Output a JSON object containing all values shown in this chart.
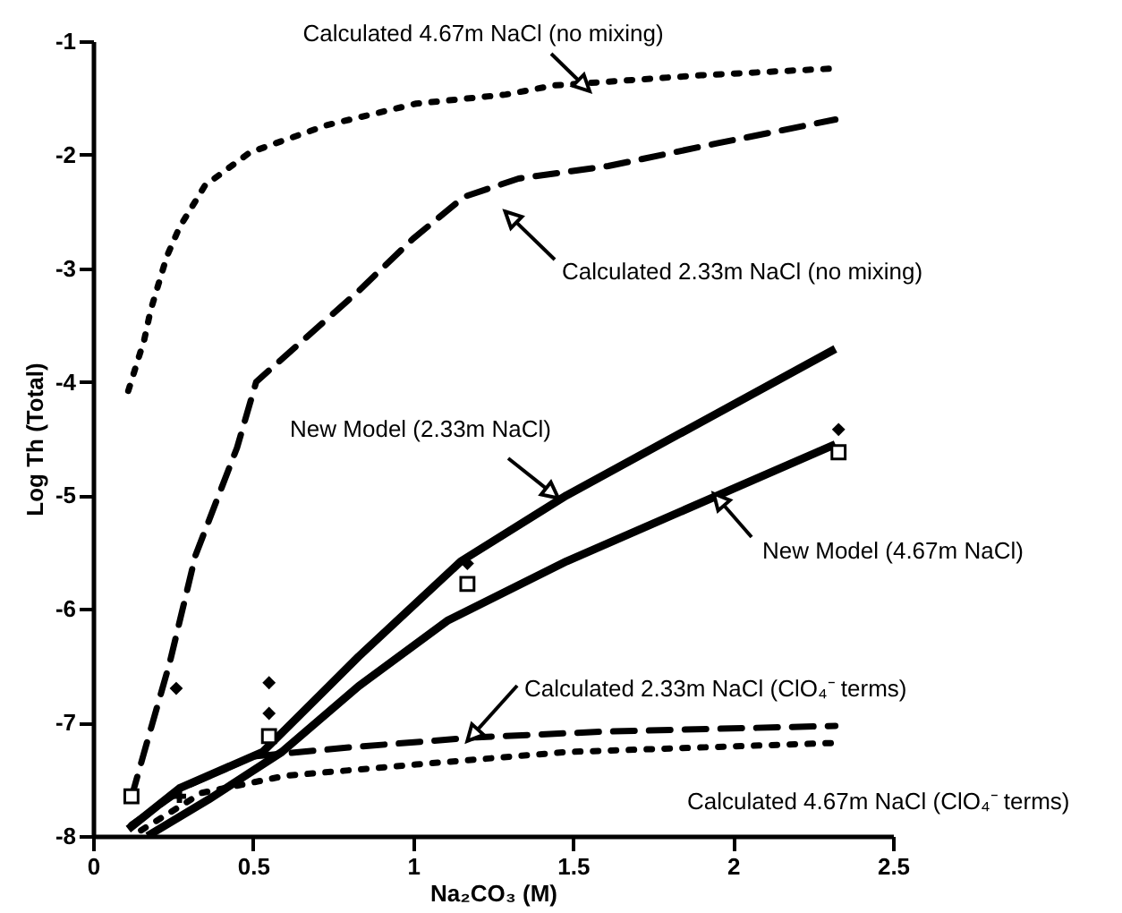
{
  "chart_data": {
    "type": "line",
    "xlabel": "Na₂CO₃ (M)",
    "ylabel": "Log Th (Total)",
    "xlim": [
      0,
      2.5
    ],
    "xticks": [
      0,
      0.5,
      1,
      1.5,
      2,
      2.5
    ],
    "ylim": [
      -8,
      -1
    ],
    "yticks": [
      -8,
      -7,
      -6,
      -5,
      -4,
      -3,
      -2,
      -1
    ],
    "series": [
      {
        "color": "#000000",
        "line_style": "dotted",
        "x": [
          0.11,
          0.16,
          0.18,
          0.23,
          0.27,
          0.35,
          0.49,
          0.73,
          1.01,
          1.29,
          1.44,
          1.9,
          2.32
        ],
        "values": [
          -4.08,
          -3.63,
          -3.37,
          -2.9,
          -2.64,
          -2.27,
          -1.98,
          -1.74,
          -1.55,
          -1.47,
          -1.39,
          -1.3,
          -1.24
        ]
      },
      {
        "color": "#000000",
        "line_style": "dashed",
        "x": [
          0.12,
          0.16,
          0.24,
          0.32,
          0.45,
          0.51,
          0.83,
          1.0,
          1.16,
          1.33,
          1.61,
          1.95,
          2.32
        ],
        "values": [
          -7.66,
          -7.26,
          -6.47,
          -5.53,
          -4.58,
          -4.0,
          -3.2,
          -2.74,
          -2.37,
          -2.21,
          -2.1,
          -1.9,
          -1.69
        ]
      },
      {
        "color": "#000000",
        "line_style": "solid",
        "x": [
          0.11,
          0.27,
          0.53,
          0.83,
          1.15,
          1.48,
          2.32
        ],
        "values": [
          -7.94,
          -7.58,
          -7.26,
          -6.42,
          -5.58,
          -5.0,
          -3.71
        ]
      },
      {
        "color": "#000000",
        "line_style": "solid",
        "x": [
          0.17,
          0.36,
          0.59,
          0.83,
          1.11,
          1.48,
          2.32
        ],
        "values": [
          -8.0,
          -7.68,
          -7.26,
          -6.68,
          -6.1,
          -5.58,
          -4.55
        ]
      },
      {
        "color": "#000000",
        "line_style": "dashed",
        "x": [
          0.12,
          0.3,
          0.5,
          0.8,
          1.2,
          1.6,
          2.32
        ],
        "values": [
          -7.9,
          -7.55,
          -7.3,
          -7.22,
          -7.13,
          -7.08,
          -7.03
        ]
      },
      {
        "color": "#000000",
        "line_style": "dotted",
        "x": [
          0.15,
          0.34,
          0.6,
          1.01,
          1.48,
          2.32
        ],
        "values": [
          -7.95,
          -7.62,
          -7.47,
          -7.37,
          -7.26,
          -7.18
        ]
      },
      {
        "type": "scatter",
        "marker": "square",
        "color": "#000000",
        "x": [
          0.12,
          0.55,
          1.17,
          2.33
        ],
        "values": [
          -7.65,
          -7.12,
          -5.78,
          -4.62
        ]
      },
      {
        "type": "scatter",
        "marker": "diamond",
        "color": "#000000",
        "x": [
          0.26,
          0.55,
          0.55,
          1.17,
          2.33
        ],
        "values": [
          -6.7,
          -6.65,
          -6.92,
          -5.6,
          -4.42
        ]
      },
      {
        "type": "scatter",
        "marker": "cross",
        "color": "#000000",
        "x": [
          0.27
        ],
        "values": [
          -7.65
        ]
      }
    ],
    "annotations": [
      {
        "text": "Calculated 4.67m NaCl (no mixing)",
        "x": 1.53,
        "y": -1.38
      },
      {
        "text": "Calculated 2.33m NaCl (no mixing)",
        "x": 1.31,
        "y": -2.56
      },
      {
        "text": "New Model (2.33m NaCl)",
        "x": 1.43,
        "y": -4.97
      },
      {
        "text": "New Model (4.67m NaCl)",
        "x": 1.96,
        "y": -5.05
      },
      {
        "text": "Calculated 2.33m NaCl (ClO₄⁻ terms)",
        "x": 1.19,
        "y": -7.1
      },
      "Calculated 4.67m NaCl (ClO₄⁻ terms)"
    ]
  }
}
